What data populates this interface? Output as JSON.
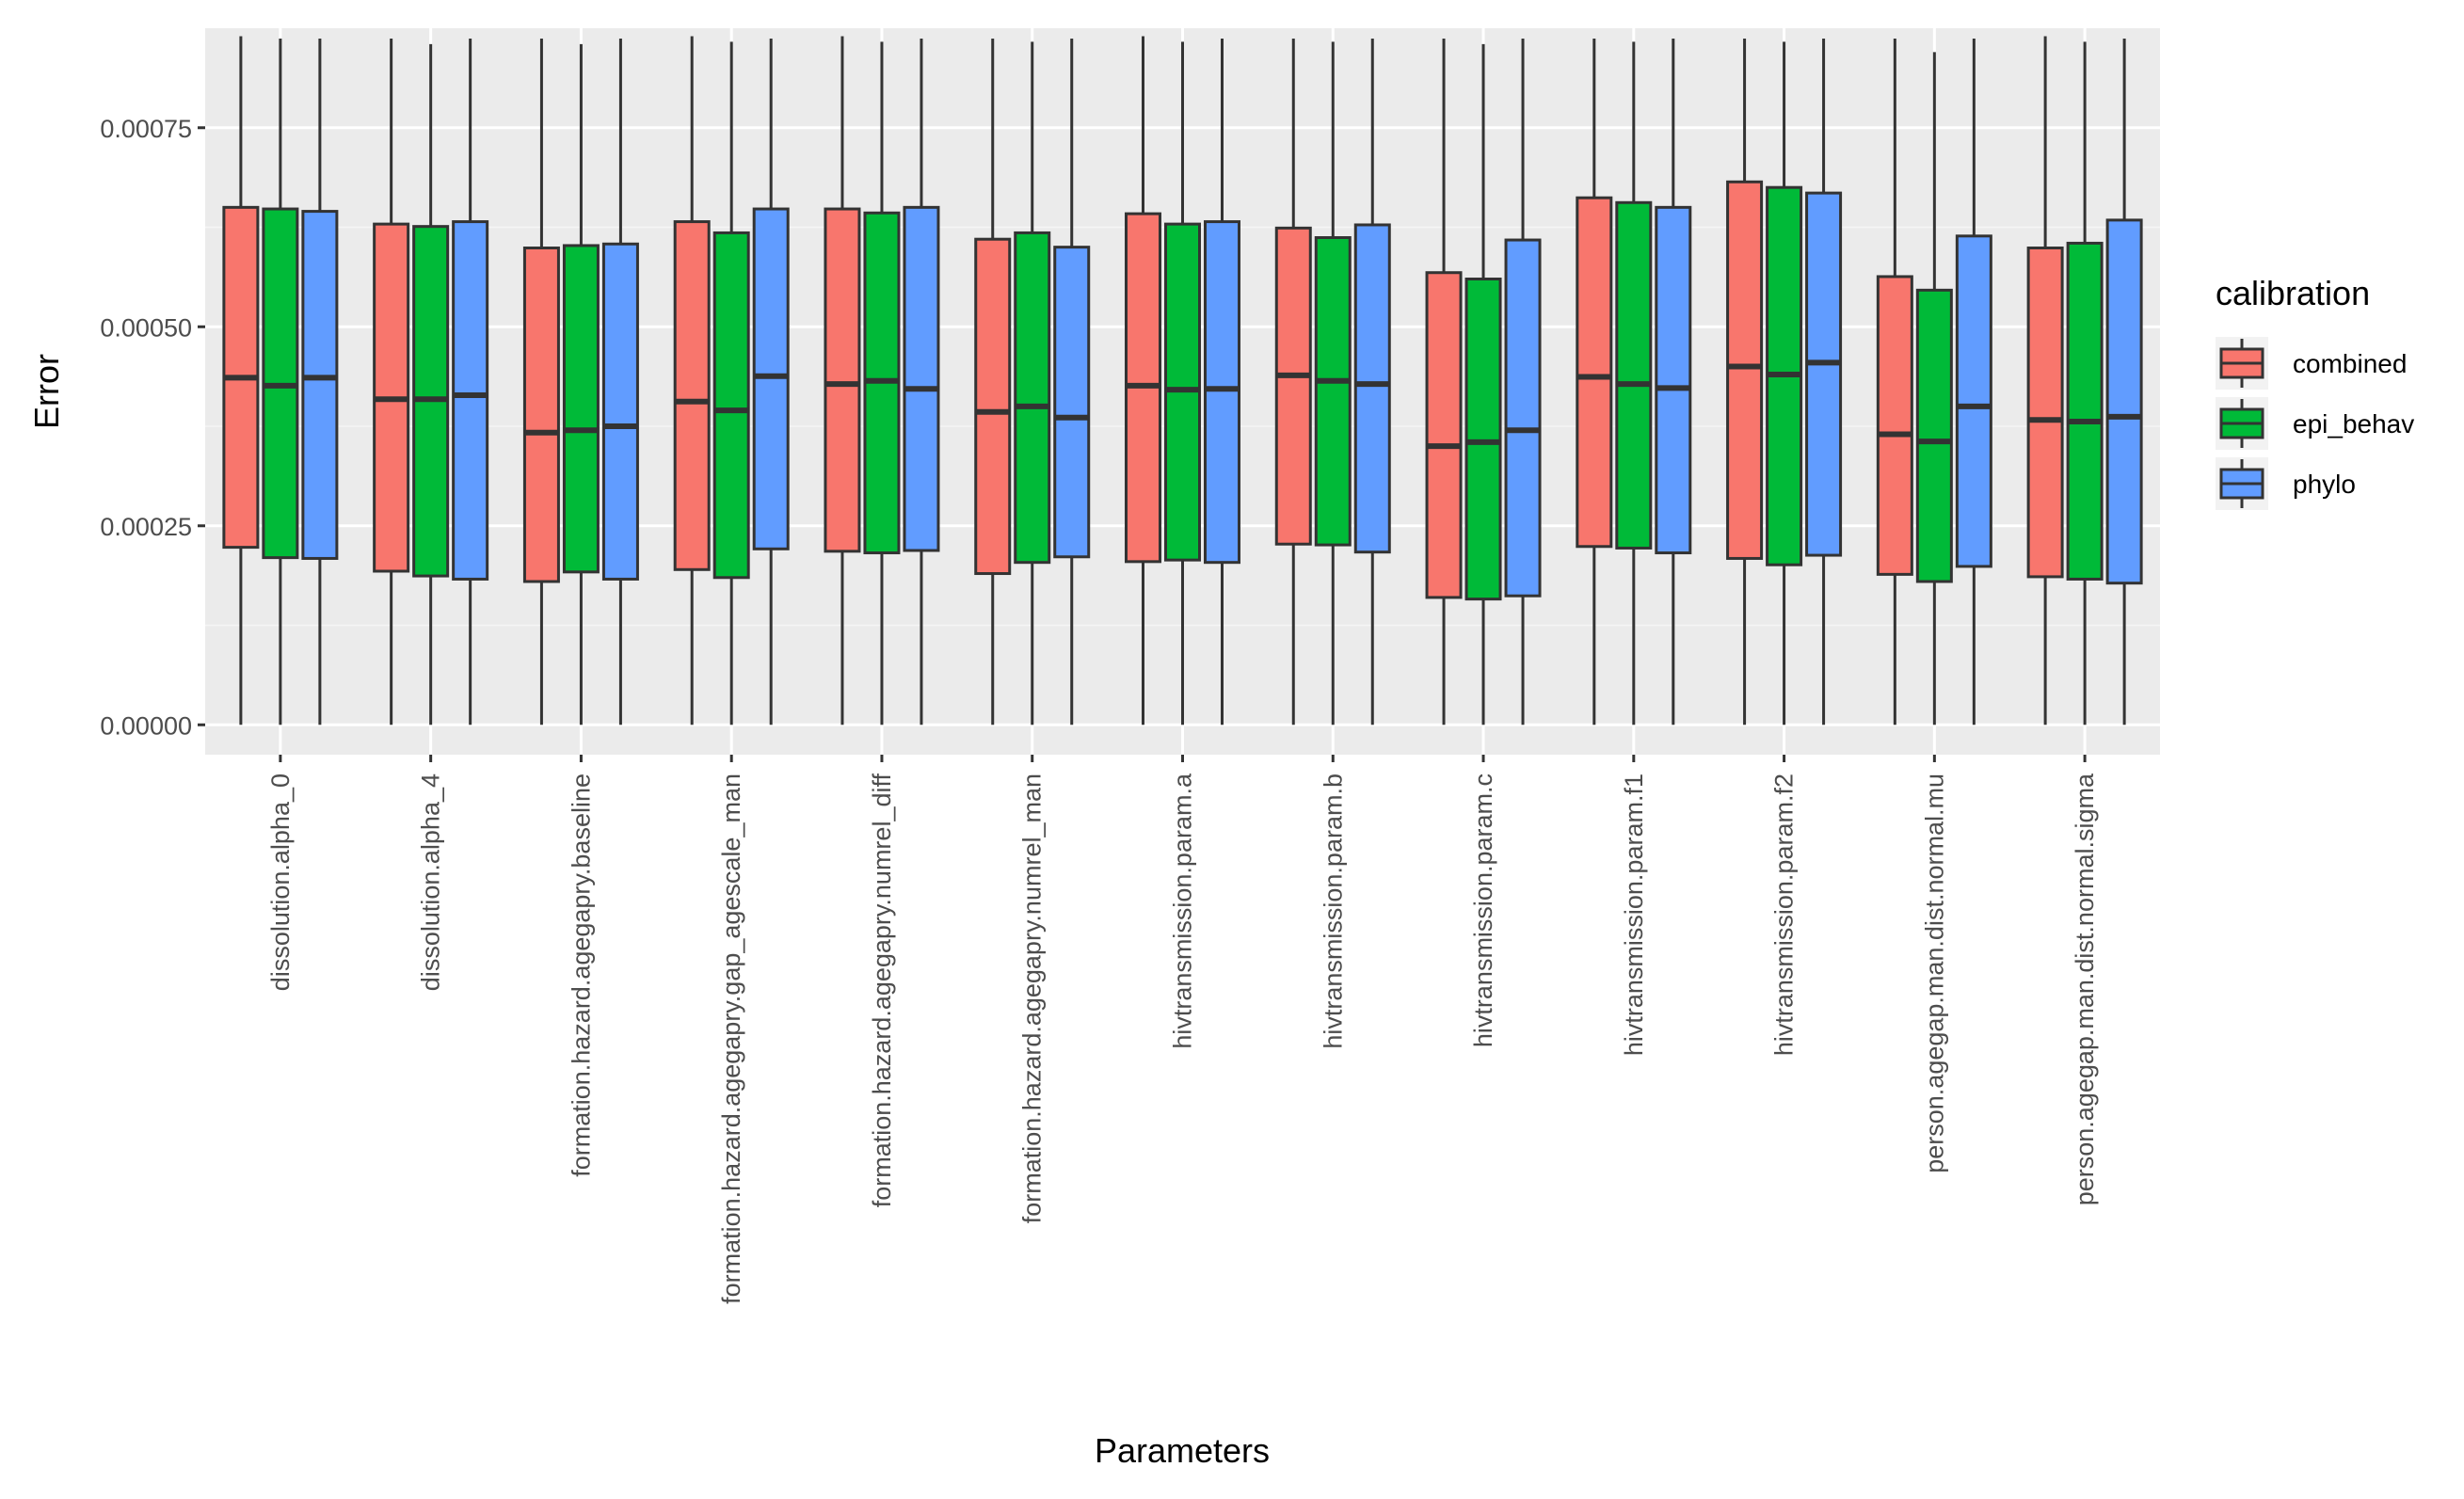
{
  "chart_data": {
    "type": "boxplot",
    "title": "",
    "xlabel": "Parameters",
    "ylabel": "Error",
    "ylim": [
      -3.75e-05,
      0.000875
    ],
    "yticks": [
      0,
      0.00025,
      0.0005,
      0.00075
    ],
    "ytick_labels": [
      "0.00000",
      "0.00025",
      "0.00050",
      "0.00075"
    ],
    "grid": true,
    "legend_position": "right",
    "legend_title": "calibration",
    "categories": [
      "dissolution.alpha_0",
      "dissolution.alpha_4",
      "formation.hazard.agegapry.baseline",
      "formation.hazard.agegapry.gap_agescale_man",
      "formation.hazard.agegapry.numrel_diff",
      "formation.hazard.agegapry.numrel_man",
      "hivtransmission.param.a",
      "hivtransmission.param.b",
      "hivtransmission.param.c",
      "hivtransmission.param.f1",
      "hivtransmission.param.f2",
      "person.agegap.man.dist.normal.mu",
      "person.agegap.man.dist.normal.sigma"
    ],
    "series": [
      {
        "name": "combined",
        "color": "#F8766D",
        "boxes": [
          {
            "min": 0.0,
            "q1": 0.000223,
            "median": 0.000436,
            "q3": 0.00065,
            "max": 0.000865
          },
          {
            "min": 0.0,
            "q1": 0.000193,
            "median": 0.000409,
            "q3": 0.000629,
            "max": 0.000862
          },
          {
            "min": 0.0,
            "q1": 0.00018,
            "median": 0.000367,
            "q3": 0.000599,
            "max": 0.000862
          },
          {
            "min": 0.0,
            "q1": 0.000195,
            "median": 0.000406,
            "q3": 0.000632,
            "max": 0.000865
          },
          {
            "min": 0.0,
            "q1": 0.000218,
            "median": 0.000428,
            "q3": 0.000648,
            "max": 0.000865
          },
          {
            "min": 0.0,
            "q1": 0.00019,
            "median": 0.000393,
            "q3": 0.00061,
            "max": 0.000862
          },
          {
            "min": 0.0,
            "q1": 0.000205,
            "median": 0.000426,
            "q3": 0.000642,
            "max": 0.000865
          },
          {
            "min": 0.0,
            "q1": 0.000227,
            "median": 0.000439,
            "q3": 0.000624,
            "max": 0.000862
          },
          {
            "min": 0.0,
            "q1": 0.00016,
            "median": 0.00035,
            "q3": 0.000568,
            "max": 0.000862
          },
          {
            "min": 0.0,
            "q1": 0.000224,
            "median": 0.000437,
            "q3": 0.000662,
            "max": 0.000862
          },
          {
            "min": 0.0,
            "q1": 0.000209,
            "median": 0.00045,
            "q3": 0.000682,
            "max": 0.000862
          },
          {
            "min": 0.0,
            "q1": 0.000189,
            "median": 0.000365,
            "q3": 0.000563,
            "max": 0.000862
          },
          {
            "min": 0.0,
            "q1": 0.000186,
            "median": 0.000383,
            "q3": 0.000599,
            "max": 0.000865
          }
        ]
      },
      {
        "name": "epi_behav",
        "color": "#00BA38",
        "boxes": [
          {
            "min": 0.0,
            "q1": 0.00021,
            "median": 0.000426,
            "q3": 0.000648,
            "max": 0.000862
          },
          {
            "min": 0.0,
            "q1": 0.000187,
            "median": 0.000409,
            "q3": 0.000626,
            "max": 0.000855
          },
          {
            "min": 0.0,
            "q1": 0.000192,
            "median": 0.00037,
            "q3": 0.000602,
            "max": 0.000855
          },
          {
            "min": 0.0,
            "q1": 0.000185,
            "median": 0.000395,
            "q3": 0.000618,
            "max": 0.000858
          },
          {
            "min": 0.0,
            "q1": 0.000216,
            "median": 0.000432,
            "q3": 0.000643,
            "max": 0.000858
          },
          {
            "min": 0.0,
            "q1": 0.000204,
            "median": 0.0004,
            "q3": 0.000618,
            "max": 0.000858
          },
          {
            "min": 0.0,
            "q1": 0.000207,
            "median": 0.000421,
            "q3": 0.000629,
            "max": 0.000858
          },
          {
            "min": 0.0,
            "q1": 0.000226,
            "median": 0.000432,
            "q3": 0.000612,
            "max": 0.000858
          },
          {
            "min": 0.0,
            "q1": 0.000158,
            "median": 0.000355,
            "q3": 0.00056,
            "max": 0.000855
          },
          {
            "min": 0.0,
            "q1": 0.000222,
            "median": 0.000428,
            "q3": 0.000656,
            "max": 0.000858
          },
          {
            "min": 0.0,
            "q1": 0.000201,
            "median": 0.00044,
            "q3": 0.000675,
            "max": 0.000858
          },
          {
            "min": 0.0,
            "q1": 0.00018,
            "median": 0.000356,
            "q3": 0.000546,
            "max": 0.000845
          },
          {
            "min": 0.0,
            "q1": 0.000183,
            "median": 0.000381,
            "q3": 0.000605,
            "max": 0.000858
          }
        ]
      },
      {
        "name": "phylo",
        "color": "#619CFF",
        "boxes": [
          {
            "min": 0.0,
            "q1": 0.000209,
            "median": 0.000436,
            "q3": 0.000645,
            "max": 0.000862
          },
          {
            "min": 0.0,
            "q1": 0.000183,
            "median": 0.000414,
            "q3": 0.000632,
            "max": 0.000862
          },
          {
            "min": 0.0,
            "q1": 0.000183,
            "median": 0.000375,
            "q3": 0.000604,
            "max": 0.000862
          },
          {
            "min": 0.0,
            "q1": 0.000221,
            "median": 0.000438,
            "q3": 0.000648,
            "max": 0.000862
          },
          {
            "min": 0.0,
            "q1": 0.000219,
            "median": 0.000422,
            "q3": 0.00065,
            "max": 0.000862
          },
          {
            "min": 0.0,
            "q1": 0.000211,
            "median": 0.000386,
            "q3": 0.0006,
            "max": 0.000862
          },
          {
            "min": 0.0,
            "q1": 0.000204,
            "median": 0.000422,
            "q3": 0.000632,
            "max": 0.000862
          },
          {
            "min": 0.0,
            "q1": 0.000217,
            "median": 0.000428,
            "q3": 0.000628,
            "max": 0.000862
          },
          {
            "min": 0.0,
            "q1": 0.000162,
            "median": 0.00037,
            "q3": 0.000609,
            "max": 0.000862
          },
          {
            "min": 0.0,
            "q1": 0.000216,
            "median": 0.000423,
            "q3": 0.00065,
            "max": 0.000862
          },
          {
            "min": 0.0,
            "q1": 0.000213,
            "median": 0.000455,
            "q3": 0.000668,
            "max": 0.000862
          },
          {
            "min": 0.0,
            "q1": 0.000199,
            "median": 0.0004,
            "q3": 0.000614,
            "max": 0.000862
          },
          {
            "min": 0.0,
            "q1": 0.000178,
            "median": 0.000387,
            "q3": 0.000634,
            "max": 0.000862
          }
        ]
      }
    ]
  }
}
